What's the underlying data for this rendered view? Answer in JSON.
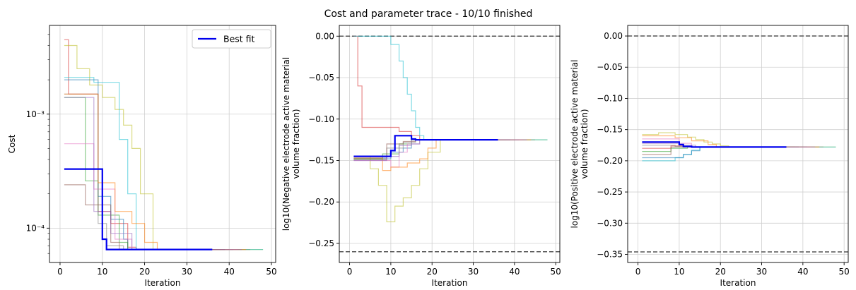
{
  "title": "Cost and parameter trace - 10/10 finished",
  "colors": {
    "best": "#0000ee",
    "bound": "#555555",
    "grid": "#d0d0d0",
    "traces": [
      "#d62728",
      "#bcbd22",
      "#17becf",
      "#1f77b4",
      "#2ca02c",
      "#e377c2",
      "#7f7f7f",
      "#ff7f0e",
      "#8c564b",
      "#9467bd"
    ]
  },
  "chart_data": [
    {
      "type": "line",
      "xlabel": "Iteration",
      "ylabel": "Cost",
      "yscale": "log",
      "xlim": [
        -2.5,
        51
      ],
      "ylim": [
        5e-05,
        0.006
      ],
      "xticks": [
        0,
        10,
        20,
        30,
        40,
        50
      ],
      "yticks_major": [
        {
          "value": 0.0001,
          "label": "10⁻⁴"
        },
        {
          "value": 0.001,
          "label": "10⁻³"
        }
      ],
      "yticks_minor": [
        6e-05,
        7e-05,
        8e-05,
        9e-05,
        0.0002,
        0.0003,
        0.0004,
        0.0005,
        0.0006,
        0.0007,
        0.0008,
        0.0009,
        0.002,
        0.003,
        0.004,
        0.005
      ],
      "grid": true,
      "legend": {
        "position": "top-right",
        "entries": [
          "Best fit"
        ]
      },
      "best_fit": {
        "name": "Best fit",
        "x": [
          1,
          10,
          10,
          11,
          11,
          36
        ],
        "y": [
          0.00033,
          0.00033,
          8e-05,
          8e-05,
          6.5e-05,
          6.5e-05
        ]
      },
      "traces": [
        {
          "x": [
            1,
            2,
            2,
            9,
            9,
            12,
            12,
            16,
            16,
            18,
            18,
            45
          ],
          "y": [
            0.0045,
            0.0045,
            0.0015,
            0.0015,
            0.00014,
            0.00014,
            0.00011,
            0.00011,
            6.8e-05,
            6.8e-05,
            6.5e-05,
            6.5e-05
          ]
        },
        {
          "x": [
            1,
            4,
            4,
            7,
            7,
            10,
            10,
            13,
            13,
            15,
            15,
            17,
            17,
            19,
            19,
            22,
            22,
            48
          ],
          "y": [
            0.004,
            0.004,
            0.0025,
            0.0025,
            0.0018,
            0.0018,
            0.0014,
            0.0014,
            0.0011,
            0.0011,
            0.0008,
            0.0008,
            0.0005,
            0.0005,
            0.0002,
            0.0002,
            6.5e-05,
            6.5e-05
          ]
        },
        {
          "x": [
            1,
            8,
            8,
            14,
            14,
            16,
            16,
            18,
            18,
            48
          ],
          "y": [
            0.0021,
            0.0021,
            0.0019,
            0.0019,
            0.0006,
            0.0006,
            0.0002,
            0.0002,
            6.5e-05,
            6.5e-05
          ]
        },
        {
          "x": [
            1,
            9,
            9,
            12,
            12,
            15,
            15,
            16,
            16,
            41
          ],
          "y": [
            0.002,
            0.002,
            0.00019,
            0.00019,
            0.00012,
            0.00012,
            8e-05,
            8e-05,
            6.5e-05,
            6.5e-05
          ]
        },
        {
          "x": [
            1,
            6,
            6,
            9,
            9,
            14,
            14,
            16,
            16,
            38
          ],
          "y": [
            0.0014,
            0.0014,
            0.00026,
            0.00026,
            0.00013,
            0.00013,
            7.5e-05,
            7.5e-05,
            6.5e-05,
            6.5e-05
          ]
        },
        {
          "x": [
            1,
            8,
            8,
            13,
            13,
            17,
            17,
            42
          ],
          "y": [
            0.00055,
            0.00055,
            0.00022,
            0.00022,
            8e-05,
            8e-05,
            6.5e-05,
            6.5e-05
          ]
        },
        {
          "x": [
            1,
            9,
            9,
            11,
            11,
            15,
            15,
            40
          ],
          "y": [
            0.0015,
            0.0015,
            0.00011,
            0.00011,
            7e-05,
            7e-05,
            6.5e-05,
            6.5e-05
          ]
        },
        {
          "x": [
            1,
            9,
            9,
            13,
            13,
            17,
            17,
            20,
            20,
            23,
            23,
            44
          ],
          "y": [
            0.0015,
            0.0015,
            0.00025,
            0.00025,
            0.00014,
            0.00014,
            0.00011,
            0.00011,
            7.5e-05,
            7.5e-05,
            6.5e-05,
            6.5e-05
          ]
        },
        {
          "x": [
            1,
            6,
            6,
            12,
            12,
            14,
            14,
            39
          ],
          "y": [
            0.00024,
            0.00024,
            0.00016,
            0.00016,
            7.5e-05,
            7.5e-05,
            6.5e-05,
            6.5e-05
          ]
        },
        {
          "x": [
            1,
            8,
            8,
            12,
            12,
            17,
            17,
            43
          ],
          "y": [
            0.0014,
            0.0014,
            0.00014,
            0.00014,
            9e-05,
            9e-05,
            6.5e-05,
            6.5e-05
          ]
        }
      ]
    },
    {
      "type": "line",
      "xlabel": "Iteration",
      "ylabel": "log10(Negative electrode active material volume fraction)",
      "ylabel_lines": [
        "log10(Negative electrode active material",
        "volume fraction)"
      ],
      "xlim": [
        -2.5,
        51
      ],
      "ylim": [
        -0.273,
        0.013
      ],
      "xticks": [
        0,
        10,
        20,
        30,
        40,
        50
      ],
      "yticks": [
        0.0,
        -0.05,
        -0.1,
        -0.15,
        -0.2,
        -0.25
      ],
      "ytick_labels": [
        "0.00",
        "−0.05",
        "−0.10",
        "−0.15",
        "−0.20",
        "−0.25"
      ],
      "bounds": [
        0.0,
        -0.26
      ],
      "grid": true,
      "best_fit": {
        "name": "Best fit",
        "x": [
          1,
          10,
          10,
          11,
          11,
          15,
          15,
          16,
          16,
          36
        ],
        "y": [
          -0.145,
          -0.145,
          -0.138,
          -0.138,
          -0.12,
          -0.12,
          -0.124,
          -0.124,
          -0.125,
          -0.125
        ]
      },
      "traces": [
        {
          "x": [
            1,
            2,
            2,
            3,
            3,
            12,
            12,
            15,
            15,
            17,
            17,
            45
          ],
          "y": [
            0.0,
            0.0,
            -0.06,
            -0.06,
            -0.11,
            -0.11,
            -0.115,
            -0.115,
            -0.12,
            -0.12,
            -0.125,
            -0.125
          ]
        },
        {
          "x": [
            1,
            5,
            5,
            7,
            7,
            9,
            9,
            11,
            11,
            13,
            13,
            15,
            15,
            17,
            17,
            19,
            19,
            22,
            22,
            48
          ],
          "y": [
            -0.145,
            -0.145,
            -0.16,
            -0.16,
            -0.18,
            -0.18,
            -0.224,
            -0.224,
            -0.205,
            -0.205,
            -0.195,
            -0.195,
            -0.18,
            -0.18,
            -0.16,
            -0.16,
            -0.14,
            -0.14,
            -0.125,
            -0.125
          ]
        },
        {
          "x": [
            1,
            10,
            10,
            12,
            12,
            13,
            13,
            14,
            14,
            15,
            15,
            16,
            16,
            17,
            17,
            18,
            18,
            48
          ],
          "y": [
            0.0,
            0.0,
            -0.01,
            -0.01,
            -0.03,
            -0.03,
            -0.05,
            -0.05,
            -0.07,
            -0.07,
            -0.09,
            -0.09,
            -0.11,
            -0.11,
            -0.12,
            -0.12,
            -0.125,
            -0.125
          ]
        },
        {
          "x": [
            1,
            10,
            10,
            13,
            13,
            15,
            15,
            17,
            17,
            41
          ],
          "y": [
            -0.148,
            -0.148,
            -0.14,
            -0.14,
            -0.135,
            -0.135,
            -0.13,
            -0.13,
            -0.125,
            -0.125
          ]
        },
        {
          "x": [
            1,
            8,
            8,
            12,
            12,
            15,
            15,
            38
          ],
          "y": [
            -0.148,
            -0.148,
            -0.142,
            -0.142,
            -0.13,
            -0.13,
            -0.125,
            -0.125
          ]
        },
        {
          "x": [
            1,
            10,
            10,
            12,
            12,
            14,
            14,
            17,
            17,
            42
          ],
          "y": [
            -0.15,
            -0.15,
            -0.158,
            -0.158,
            -0.14,
            -0.14,
            -0.13,
            -0.13,
            -0.125,
            -0.125
          ]
        },
        {
          "x": [
            1,
            9,
            9,
            13,
            13,
            16,
            16,
            40
          ],
          "y": [
            -0.147,
            -0.147,
            -0.135,
            -0.135,
            -0.128,
            -0.128,
            -0.125,
            -0.125
          ]
        },
        {
          "x": [
            1,
            8,
            8,
            10,
            10,
            14,
            14,
            17,
            17,
            19,
            19,
            21,
            21,
            44
          ],
          "y": [
            -0.147,
            -0.147,
            -0.162,
            -0.162,
            -0.158,
            -0.158,
            -0.153,
            -0.153,
            -0.148,
            -0.148,
            -0.135,
            -0.135,
            -0.125,
            -0.125
          ]
        },
        {
          "x": [
            1,
            9,
            9,
            13,
            13,
            16,
            16,
            39
          ],
          "y": [
            -0.149,
            -0.149,
            -0.13,
            -0.13,
            -0.127,
            -0.127,
            -0.125,
            -0.125
          ]
        },
        {
          "x": [
            1,
            9,
            9,
            12,
            12,
            15,
            15,
            43
          ],
          "y": [
            -0.15,
            -0.15,
            -0.145,
            -0.145,
            -0.132,
            -0.132,
            -0.125,
            -0.125
          ]
        }
      ]
    },
    {
      "type": "line",
      "xlabel": "Iteration",
      "ylabel": "log10(Positive electrode active material volume fraction)",
      "ylabel_lines": [
        "log10(Positive electrode active material",
        "volume fraction)"
      ],
      "xlim": [
        -2.5,
        51
      ],
      "ylim": [
        -0.363,
        0.017
      ],
      "xticks": [
        0,
        10,
        20,
        30,
        40,
        50
      ],
      "yticks": [
        0.0,
        -0.05,
        -0.1,
        -0.15,
        -0.2,
        -0.25,
        -0.3,
        -0.35
      ],
      "ytick_labels": [
        "0.00",
        "−0.05",
        "−0.10",
        "−0.15",
        "−0.20",
        "−0.25",
        "−0.30",
        "−0.35"
      ],
      "bounds": [
        0.0,
        -0.346
      ],
      "grid": true,
      "best_fit": {
        "name": "Best fit",
        "x": [
          1,
          10,
          10,
          11,
          11,
          13,
          13,
          36
        ],
        "y": [
          -0.17,
          -0.17,
          -0.174,
          -0.174,
          -0.177,
          -0.177,
          -0.178,
          -0.178
        ]
      },
      "traces": [
        {
          "x": [
            1,
            8,
            8,
            11,
            11,
            45
          ],
          "y": [
            -0.18,
            -0.18,
            -0.176,
            -0.176,
            -0.178,
            -0.178
          ]
        },
        {
          "x": [
            1,
            5,
            5,
            9,
            9,
            12,
            12,
            14,
            14,
            16,
            16,
            18,
            18,
            20,
            20,
            22,
            22,
            48
          ],
          "y": [
            -0.158,
            -0.158,
            -0.155,
            -0.155,
            -0.158,
            -0.158,
            -0.162,
            -0.162,
            -0.166,
            -0.166,
            -0.17,
            -0.17,
            -0.173,
            -0.173,
            -0.176,
            -0.176,
            -0.178,
            -0.178
          ]
        },
        {
          "x": [
            1,
            9,
            9,
            11,
            11,
            13,
            13,
            15,
            15,
            48
          ],
          "y": [
            -0.2,
            -0.2,
            -0.195,
            -0.195,
            -0.19,
            -0.19,
            -0.183,
            -0.183,
            -0.178,
            -0.178
          ]
        },
        {
          "x": [
            1,
            11,
            11,
            13,
            13,
            15,
            15,
            41
          ],
          "y": [
            -0.195,
            -0.195,
            -0.19,
            -0.19,
            -0.184,
            -0.184,
            -0.178,
            -0.178
          ]
        },
        {
          "x": [
            1,
            8,
            8,
            12,
            12,
            38
          ],
          "y": [
            -0.185,
            -0.185,
            -0.18,
            -0.18,
            -0.178,
            -0.178
          ]
        },
        {
          "x": [
            1,
            10,
            10,
            13,
            13,
            42
          ],
          "y": [
            -0.165,
            -0.165,
            -0.172,
            -0.172,
            -0.178,
            -0.178
          ]
        },
        {
          "x": [
            1,
            9,
            9,
            12,
            12,
            40
          ],
          "y": [
            -0.175,
            -0.175,
            -0.177,
            -0.177,
            -0.178,
            -0.178
          ]
        },
        {
          "x": [
            1,
            9,
            9,
            13,
            13,
            17,
            17,
            19,
            19,
            44
          ],
          "y": [
            -0.16,
            -0.16,
            -0.163,
            -0.163,
            -0.168,
            -0.168,
            -0.174,
            -0.174,
            -0.178,
            -0.178
          ]
        },
        {
          "x": [
            1,
            8,
            8,
            39
          ],
          "y": [
            -0.19,
            -0.19,
            -0.178,
            -0.178
          ]
        },
        {
          "x": [
            1,
            10,
            10,
            14,
            14,
            43
          ],
          "y": [
            -0.172,
            -0.172,
            -0.175,
            -0.175,
            -0.178,
            -0.178
          ]
        }
      ]
    }
  ]
}
